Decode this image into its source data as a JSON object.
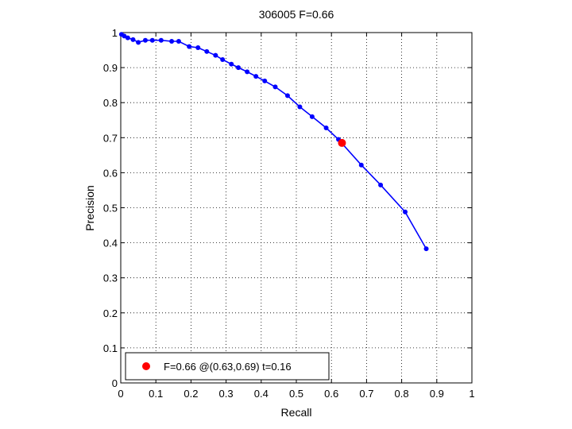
{
  "chart_data": {
    "type": "line",
    "title": "306005 F=0.66",
    "xlabel": "Recall",
    "ylabel": "Precision",
    "xlim": [
      0,
      1
    ],
    "ylim": [
      0,
      1
    ],
    "grid": true,
    "x_ticks": [
      "0",
      "0.1",
      "0.2",
      "0.3",
      "0.4",
      "0.5",
      "0.6",
      "0.7",
      "0.8",
      "0.9",
      "1"
    ],
    "y_ticks": [
      "0",
      "0.1",
      "0.2",
      "0.3",
      "0.4",
      "0.5",
      "0.6",
      "0.7",
      "0.8",
      "0.9",
      "1"
    ],
    "series": [
      {
        "color": "#0000ff",
        "x": [
          0.002,
          0.01,
          0.02,
          0.035,
          0.05,
          0.07,
          0.09,
          0.115,
          0.145,
          0.165,
          0.195,
          0.22,
          0.245,
          0.27,
          0.29,
          0.315,
          0.335,
          0.36,
          0.385,
          0.41,
          0.44,
          0.475,
          0.51,
          0.545,
          0.585,
          0.62,
          0.685,
          0.74,
          0.81,
          0.87
        ],
        "y": [
          0.995,
          0.99,
          0.985,
          0.98,
          0.972,
          0.978,
          0.978,
          0.978,
          0.975,
          0.975,
          0.96,
          0.957,
          0.946,
          0.935,
          0.923,
          0.91,
          0.9,
          0.888,
          0.875,
          0.862,
          0.845,
          0.82,
          0.788,
          0.76,
          0.728,
          0.695,
          0.622,
          0.565,
          0.488,
          0.383
        ]
      }
    ],
    "highlight": {
      "x": 0.63,
      "y": 0.685,
      "color": "#ff0000"
    },
    "legend": {
      "position": "bottom-left",
      "label": "F=0.66 @(0.63,0.69) t=0.16"
    }
  }
}
